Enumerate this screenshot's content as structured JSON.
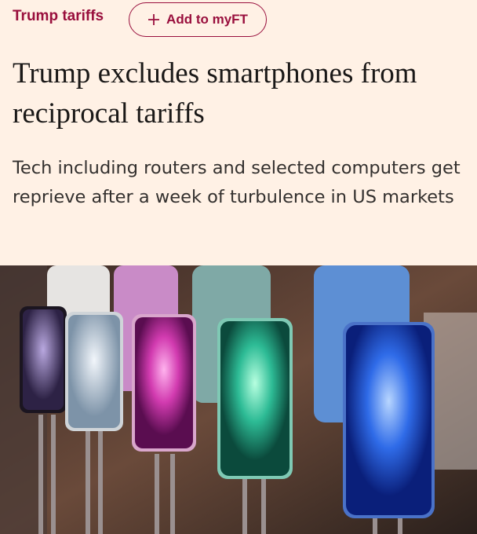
{
  "topic": "Trump tariffs",
  "follow_button": "Add to myFT",
  "headline": "Trump excludes smartphones from reciprocal tariffs",
  "standfirst": "Tech including routers and selected computers get reprieve after a week of turbulence in US markets"
}
